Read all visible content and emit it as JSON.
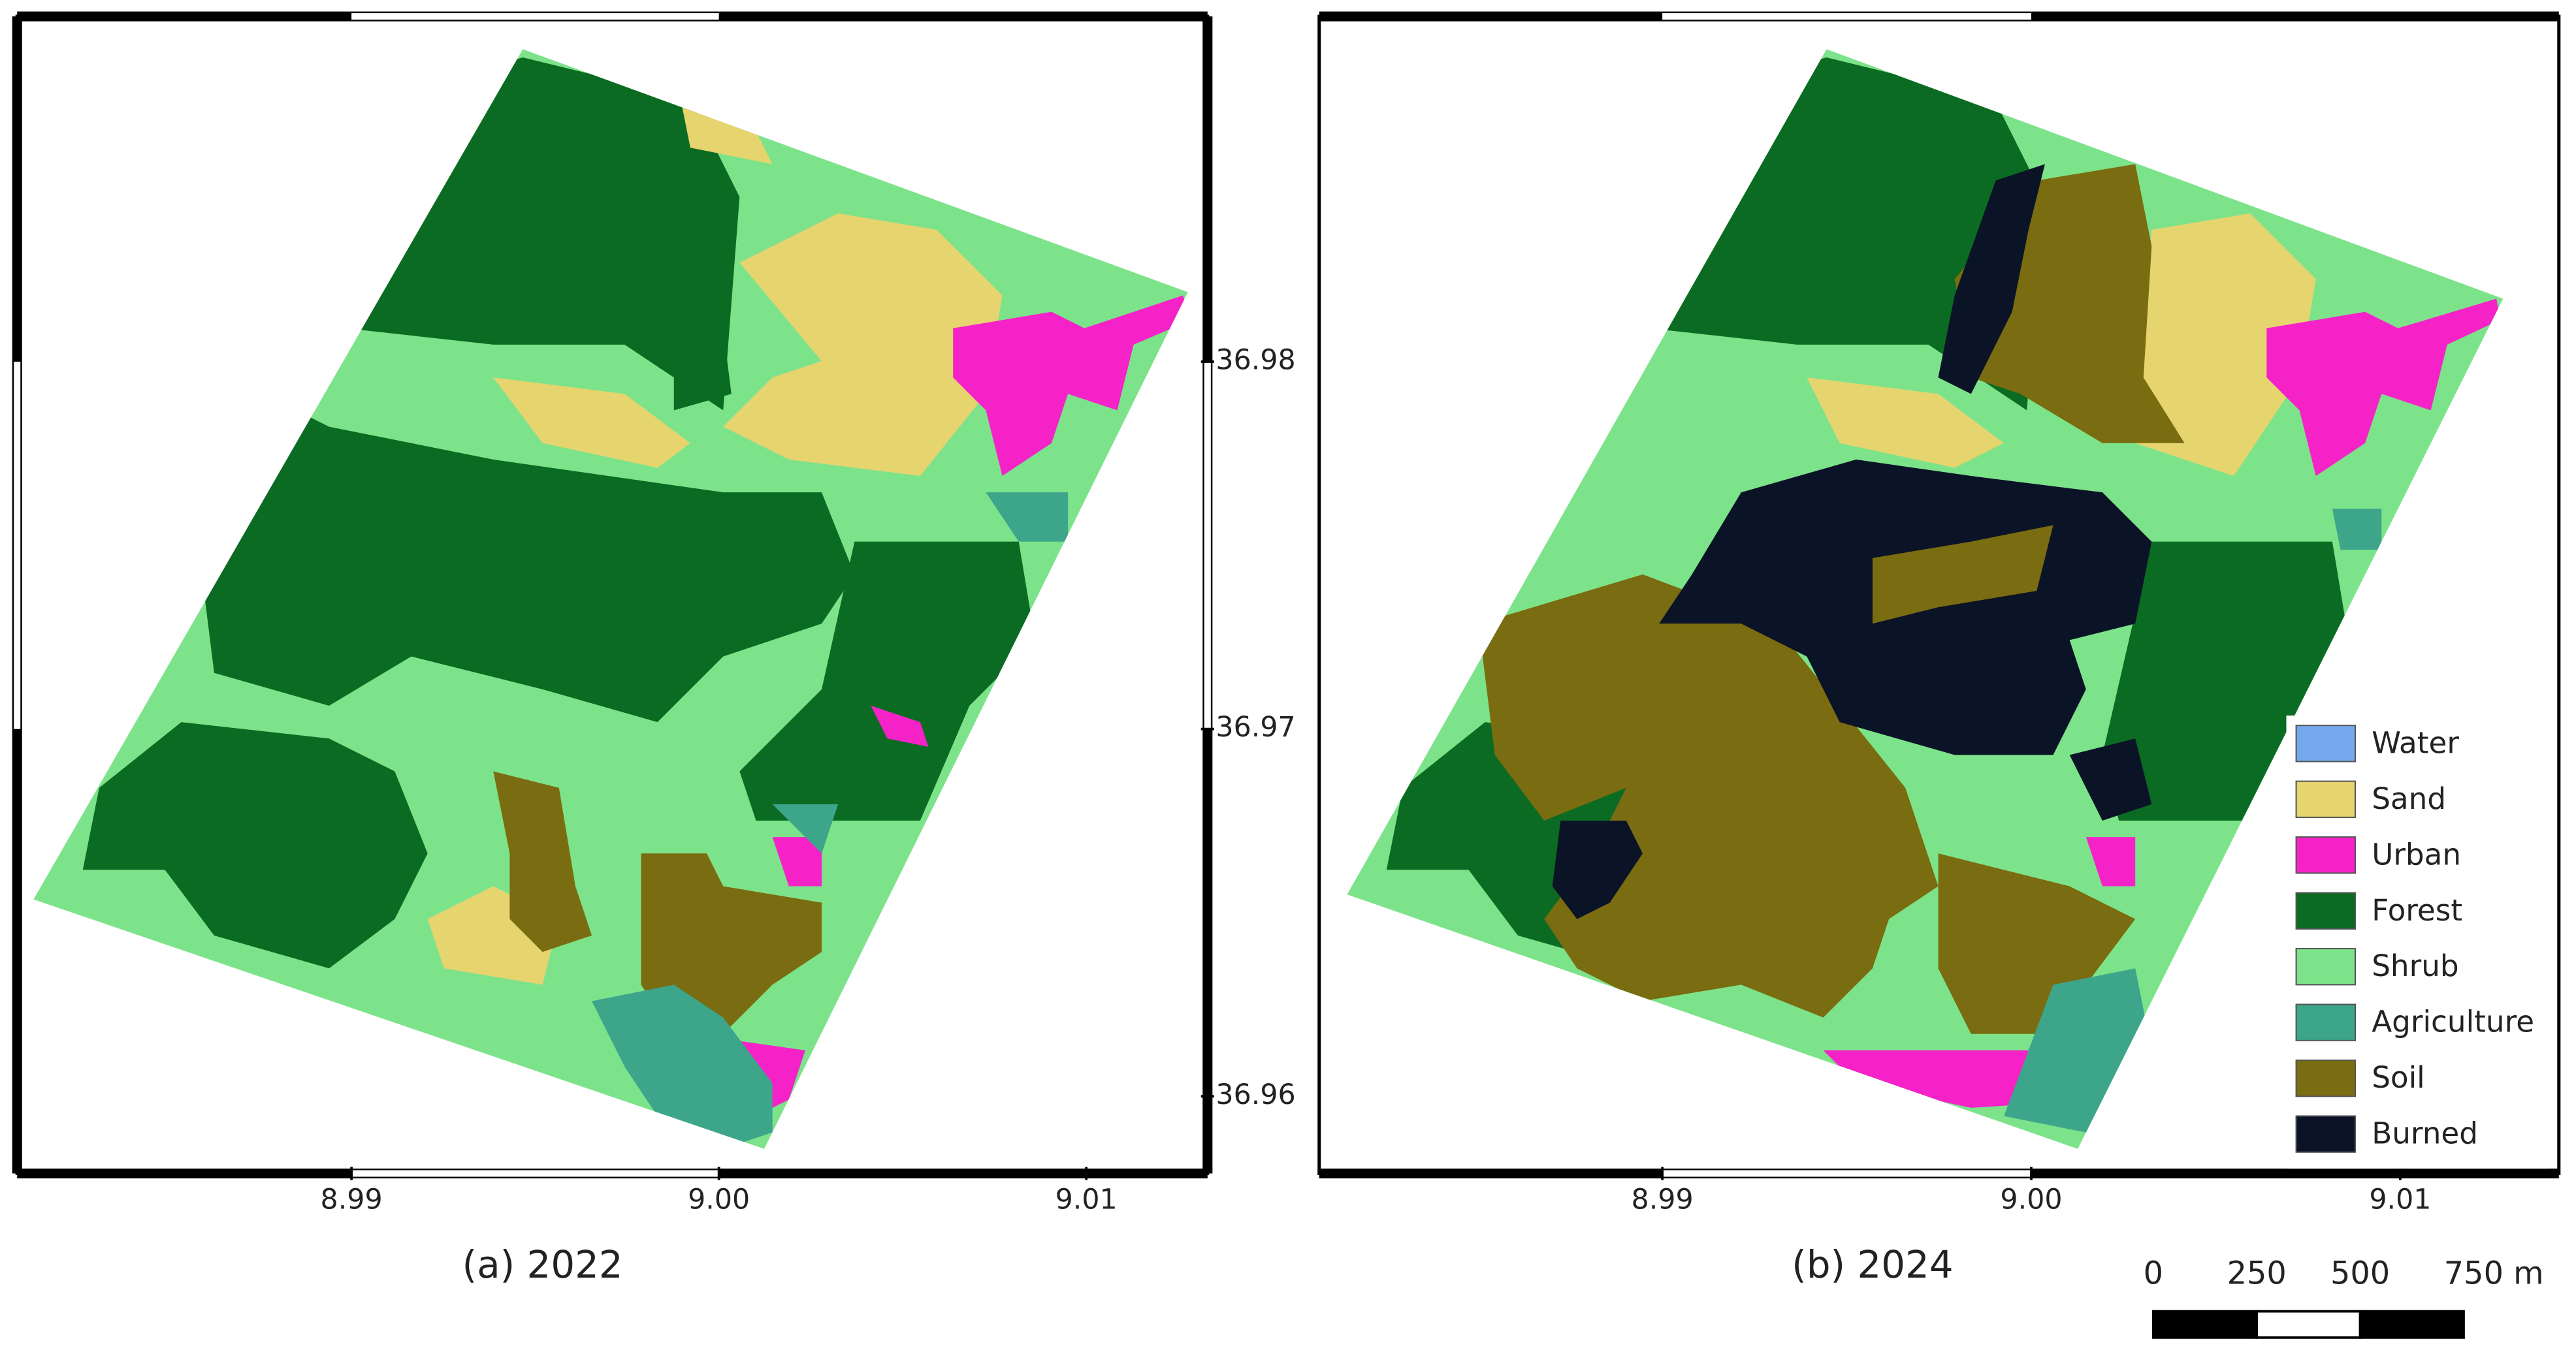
{
  "panels": [
    {
      "caption": "(a) 2022",
      "xlim": [
        8.9809,
        9.0133
      ],
      "ylim": [
        36.9579,
        36.9894
      ],
      "xticks": [
        8.99,
        {
          "value": 9,
          "label": "9.00"
        },
        9.01
      ],
      "yticks": [
        36.98,
        36.97,
        36.96
      ]
    },
    {
      "caption": "(b) 2024",
      "xlim": [
        8.9807,
        9.0143
      ],
      "xticks": [
        8.99,
        {
          "value": 9,
          "label": "9.00"
        },
        9.01
      ]
    }
  ],
  "legend": [
    {
      "label": "Water",
      "color": "#74a9f0"
    },
    {
      "label": "Sand",
      "color": "#e6d46e"
    },
    {
      "label": "Urban",
      "color": "#f522c8"
    },
    {
      "label": "Forest",
      "color": "#0b6b22"
    },
    {
      "label": "Shrub",
      "color": "#7de38a"
    },
    {
      "label": "Agriculture",
      "color": "#3da58a"
    },
    {
      "label": "Soil",
      "color": "#7a6c10"
    },
    {
      "label": "Burned",
      "color": "#0b1426"
    }
  ],
  "scale_bar": {
    "ticks": [
      0,
      250,
      500,
      {
        "value": 750,
        "label": "750 m"
      }
    ]
  }
}
